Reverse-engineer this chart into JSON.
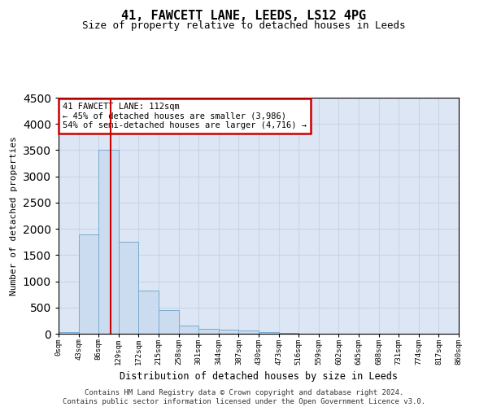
{
  "title": "41, FAWCETT LANE, LEEDS, LS12 4PG",
  "subtitle": "Size of property relative to detached houses in Leeds",
  "xlabel": "Distribution of detached houses by size in Leeds",
  "ylabel": "Number of detached properties",
  "bin_labels": [
    "0sqm",
    "43sqm",
    "86sqm",
    "129sqm",
    "172sqm",
    "215sqm",
    "258sqm",
    "301sqm",
    "344sqm",
    "387sqm",
    "430sqm",
    "473sqm",
    "516sqm",
    "559sqm",
    "602sqm",
    "645sqm",
    "688sqm",
    "731sqm",
    "774sqm",
    "817sqm",
    "860sqm"
  ],
  "bar_heights": [
    30,
    1900,
    3500,
    1750,
    830,
    450,
    160,
    95,
    70,
    55,
    30,
    10,
    5,
    2,
    1,
    0,
    0,
    0,
    0,
    0
  ],
  "bar_color": "#ccdcf0",
  "bar_edge_color": "#7aaace",
  "red_line_x": 2.62,
  "ylim": [
    0,
    4500
  ],
  "yticks": [
    0,
    500,
    1000,
    1500,
    2000,
    2500,
    3000,
    3500,
    4000,
    4500
  ],
  "annotation_text": "41 FAWCETT LANE: 112sqm\n← 45% of detached houses are smaller (3,986)\n54% of semi-detached houses are larger (4,716) →",
  "annotation_box_facecolor": "#ffffff",
  "annotation_box_edgecolor": "#cc0000",
  "red_line_color": "#cc0000",
  "footer_line1": "Contains HM Land Registry data © Crown copyright and database right 2024.",
  "footer_line2": "Contains public sector information licensed under the Open Government Licence v3.0.",
  "grid_color": "#c8d4e8",
  "bg_color": "#dde6f4",
  "title_fontsize": 11,
  "subtitle_fontsize": 9,
  "footer_fontsize": 6.5
}
